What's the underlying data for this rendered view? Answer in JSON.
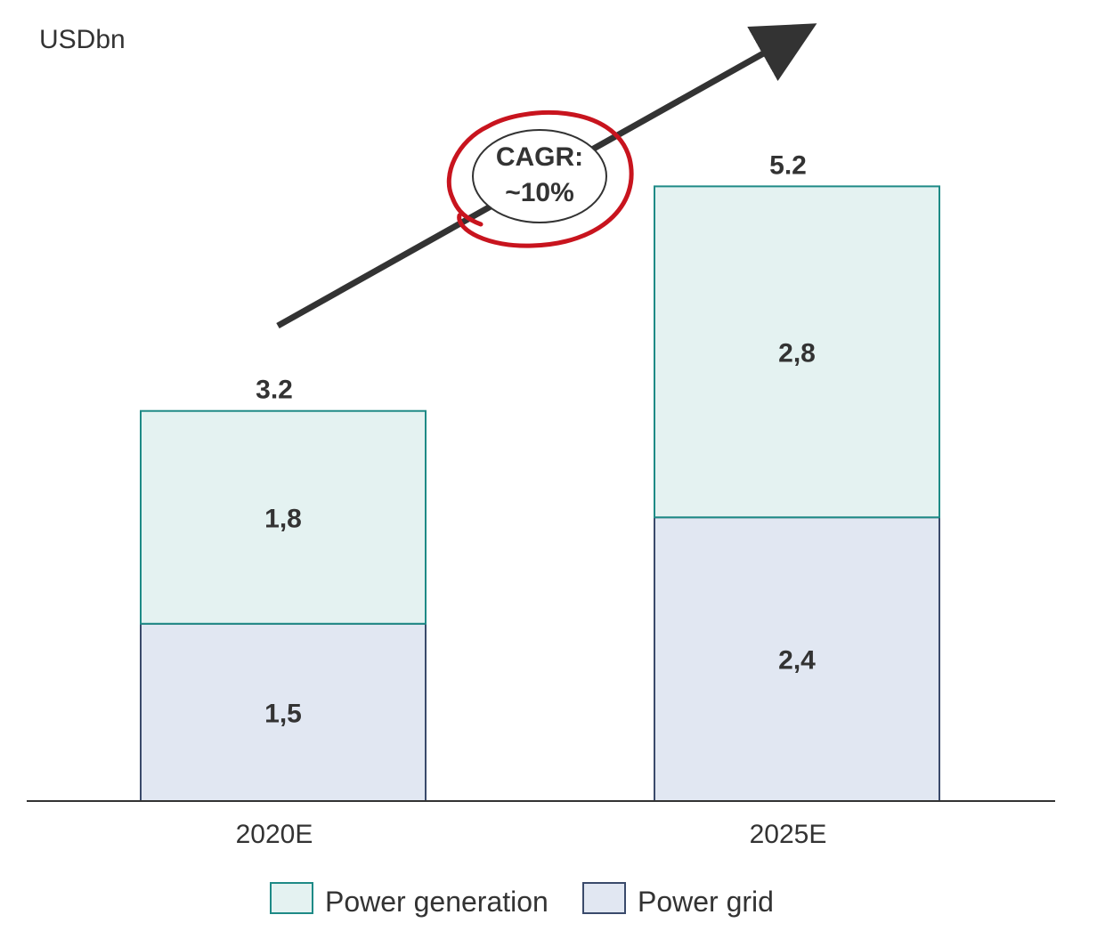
{
  "chart_data": {
    "type": "bar",
    "stacked": true,
    "unit_label": "USDbn",
    "categories": [
      "2020E",
      "2025E"
    ],
    "series": [
      {
        "name": "Power grid",
        "values": [
          1.5,
          2.4
        ],
        "labels": [
          "1,5",
          "2,4"
        ],
        "color": "#E1E7F2",
        "stroke": "#3A4A6B"
      },
      {
        "name": "Power generation",
        "values": [
          1.8,
          2.8
        ],
        "labels": [
          "1,8",
          "2,8"
        ],
        "color": "#E4F2F1",
        "stroke": "#1E8A86"
      }
    ],
    "totals": [
      "3.2",
      "5.2"
    ],
    "total_values": [
      3.2,
      5.2
    ],
    "annotation": {
      "line1": "CAGR:",
      "line2": "~10%",
      "circle_color": "#C8141E",
      "arrow_color": "#333333"
    },
    "legend": {
      "position": "bottom"
    },
    "grid": false
  }
}
